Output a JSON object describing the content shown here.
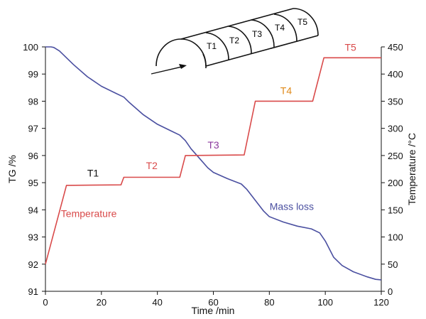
{
  "chart_data": {
    "type": "line",
    "title": "",
    "xlabel": "Time /min",
    "ylabel_left": "TG /%",
    "ylabel_right": "Temperature /°C",
    "xlim": [
      0,
      120
    ],
    "ylim_left": [
      91,
      100
    ],
    "ylim_right": [
      0,
      450
    ],
    "x_ticks": [
      0,
      20,
      40,
      60,
      80,
      100,
      120
    ],
    "y_left_ticks": [
      91,
      92,
      93,
      94,
      95,
      96,
      97,
      98,
      99,
      100
    ],
    "y_right_ticks": [
      0,
      50,
      100,
      150,
      200,
      250,
      300,
      350,
      400,
      450
    ],
    "grid": false,
    "series": [
      {
        "name": "Mass loss",
        "axis": "left",
        "color": "#4a4fa0",
        "x": [
          0,
          2,
          3,
          5,
          10,
          15,
          20,
          25,
          28,
          30,
          35,
          40,
          45,
          48,
          50,
          52,
          55,
          58,
          60,
          65,
          70,
          72,
          75,
          78,
          80,
          85,
          90,
          95,
          98,
          100,
          103,
          106,
          110,
          115,
          118,
          120
        ],
        "y": [
          100,
          100,
          99.98,
          99.85,
          99.35,
          98.9,
          98.55,
          98.3,
          98.15,
          97.95,
          97.5,
          97.15,
          96.9,
          96.75,
          96.55,
          96.25,
          95.9,
          95.55,
          95.38,
          95.15,
          94.95,
          94.75,
          94.35,
          93.95,
          93.75,
          93.55,
          93.4,
          93.3,
          93.15,
          92.85,
          92.25,
          91.95,
          91.72,
          91.53,
          91.44,
          91.42
        ]
      },
      {
        "name": "Temperature",
        "axis": "right",
        "color": "#d94a4a",
        "x": [
          0,
          7.5,
          27,
          28,
          48,
          50,
          71,
          75,
          95.5,
          99.5,
          120
        ],
        "y": [
          50,
          195,
          196,
          210,
          210,
          250,
          251,
          350,
          350,
          430,
          430
        ]
      }
    ],
    "annotations": [
      {
        "text": "T1",
        "x": 17,
        "y_right": 211,
        "color": "#111111"
      },
      {
        "text": "T2",
        "x": 38,
        "y_right": 225,
        "color": "#d94a4a"
      },
      {
        "text": "T3",
        "x": 60,
        "y_right": 263,
        "color": "#8b3a9e"
      },
      {
        "text": "T4",
        "x": 86,
        "y_right": 363,
        "color": "#e08a1a"
      },
      {
        "text": "T5",
        "x": 109,
        "y_right": 443,
        "color": "#d94a4a"
      },
      {
        "text": "Temperature",
        "x": 15.5,
        "y_right": 137,
        "color": "#d94a4a"
      },
      {
        "text": "Mass loss",
        "x": 88,
        "y_right": 150,
        "color": "#4a4fa0"
      }
    ],
    "inset": {
      "zones": [
        {
          "label": "T1",
          "color": "#111111"
        },
        {
          "label": "T2",
          "color": "#d94a4a"
        },
        {
          "label": "T3",
          "color": "#8b3a9e"
        },
        {
          "label": "T4",
          "color": "#e08a1a"
        },
        {
          "label": "T5",
          "color": "#d94a4a"
        }
      ]
    }
  }
}
